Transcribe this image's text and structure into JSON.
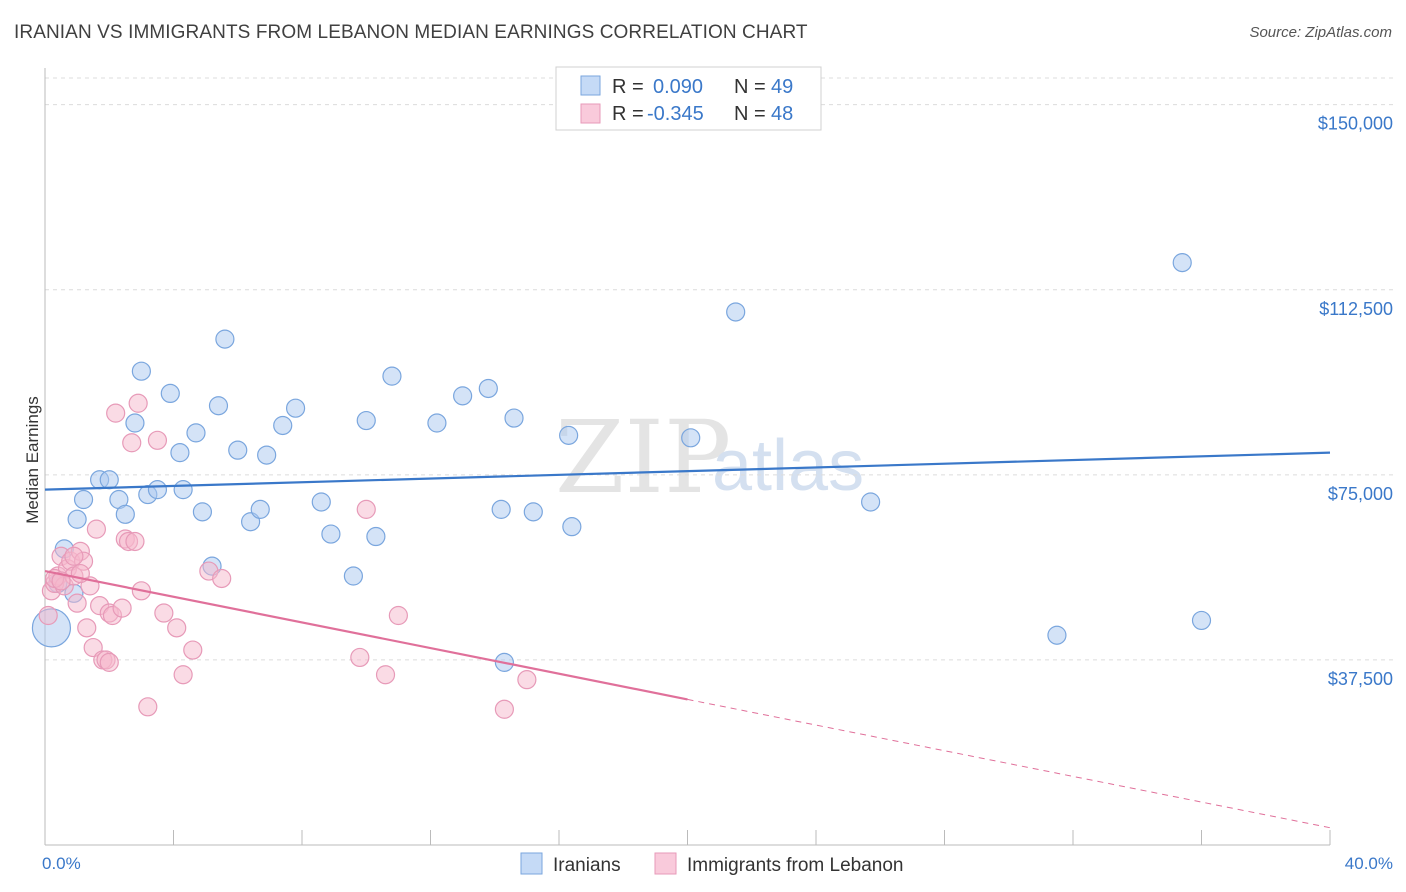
{
  "title": "IRANIAN VS IMMIGRANTS FROM LEBANON MEDIAN EARNINGS CORRELATION CHART",
  "source": "Source: ZipAtlas.com",
  "watermark": {
    "zip": "ZIP",
    "atlas": "atlas"
  },
  "colors": {
    "blue": "#3a78c9",
    "blue_fill": "#a9c8f0",
    "pink": "#e0709a",
    "pink_fill": "#f5b8cc",
    "grid": "#dcdcdc"
  },
  "legend": {
    "r_label": "R =",
    "n_label": "N =",
    "rows": [
      {
        "series": "Iranians",
        "r": "0.090",
        "n": "49"
      },
      {
        "series": "Immigrants from Lebanon",
        "r": "-0.345",
        "n": "48"
      }
    ]
  },
  "chart_data": {
    "type": "scatter",
    "title": "IRANIAN VS IMMIGRANTS FROM LEBANON MEDIAN EARNINGS CORRELATION CHART",
    "xlabel": "",
    "ylabel": "Median Earnings",
    "xlim": [
      0,
      40
    ],
    "ylim": [
      0,
      155000
    ],
    "x_tick_labels": {
      "left": "0.0%",
      "right": "40.0%"
    },
    "y_ticks": [
      {
        "value": 37500,
        "label": "$37,500"
      },
      {
        "value": 75000,
        "label": "$75,000"
      },
      {
        "value": 112500,
        "label": "$112,500"
      },
      {
        "value": 150000,
        "label": "$150,000"
      }
    ],
    "series": [
      {
        "name": "Iranians",
        "trend": {
          "x0": 0,
          "y0": 72000,
          "x1": 40,
          "y1": 79500,
          "dashed_from": null
        },
        "points": [
          [
            0.2,
            44000
          ],
          [
            0.4,
            53000
          ],
          [
            0.6,
            60000
          ],
          [
            0.9,
            51000
          ],
          [
            1.0,
            66000
          ],
          [
            1.2,
            70000
          ],
          [
            1.7,
            74000
          ],
          [
            2.0,
            74000
          ],
          [
            2.3,
            70000
          ],
          [
            2.5,
            67000
          ],
          [
            2.8,
            85500
          ],
          [
            3.0,
            96000
          ],
          [
            3.2,
            71000
          ],
          [
            3.5,
            72000
          ],
          [
            3.9,
            91500
          ],
          [
            4.2,
            79500
          ],
          [
            4.3,
            72000
          ],
          [
            4.7,
            83500
          ],
          [
            4.9,
            67500
          ],
          [
            5.2,
            56500
          ],
          [
            5.4,
            89000
          ],
          [
            5.6,
            102500
          ],
          [
            6.0,
            80000
          ],
          [
            6.4,
            65500
          ],
          [
            6.7,
            68000
          ],
          [
            6.9,
            79000
          ],
          [
            7.4,
            85000
          ],
          [
            7.8,
            88500
          ],
          [
            8.6,
            69500
          ],
          [
            8.9,
            63000
          ],
          [
            9.6,
            54500
          ],
          [
            10.0,
            86000
          ],
          [
            10.3,
            62500
          ],
          [
            10.8,
            95000
          ],
          [
            12.2,
            85500
          ],
          [
            13.0,
            91000
          ],
          [
            13.8,
            92500
          ],
          [
            14.2,
            68000
          ],
          [
            14.3,
            37000
          ],
          [
            14.6,
            86500
          ],
          [
            15.2,
            67500
          ],
          [
            16.3,
            83000
          ],
          [
            16.4,
            64500
          ],
          [
            20.1,
            82500
          ],
          [
            21.5,
            108000
          ],
          [
            25.7,
            69500
          ],
          [
            31.5,
            42500
          ],
          [
            35.4,
            118000
          ],
          [
            36.0,
            45500
          ]
        ]
      },
      {
        "name": "Immigrants from Lebanon",
        "trend": {
          "x0": 0,
          "y0": 55500,
          "x1": 40,
          "y1": 3500,
          "dashed_from": 20
        },
        "points": [
          [
            0.1,
            46500
          ],
          [
            0.2,
            51500
          ],
          [
            0.3,
            53000
          ],
          [
            0.4,
            54500
          ],
          [
            0.5,
            58500
          ],
          [
            0.6,
            52500
          ],
          [
            0.7,
            56000
          ],
          [
            0.8,
            57500
          ],
          [
            0.9,
            54500
          ],
          [
            1.0,
            49000
          ],
          [
            1.1,
            59500
          ],
          [
            1.2,
            57500
          ],
          [
            1.3,
            44000
          ],
          [
            1.4,
            52500
          ],
          [
            1.5,
            40000
          ],
          [
            1.6,
            64000
          ],
          [
            1.7,
            48500
          ],
          [
            1.8,
            37500
          ],
          [
            1.9,
            37500
          ],
          [
            2.0,
            47000
          ],
          [
            2.1,
            46500
          ],
          [
            2.2,
            87500
          ],
          [
            2.4,
            48000
          ],
          [
            2.5,
            62000
          ],
          [
            2.6,
            61500
          ],
          [
            2.7,
            81500
          ],
          [
            2.8,
            61500
          ],
          [
            2.9,
            89500
          ],
          [
            3.0,
            51500
          ],
          [
            3.2,
            28000
          ],
          [
            3.5,
            82000
          ],
          [
            3.7,
            47000
          ],
          [
            4.1,
            44000
          ],
          [
            4.3,
            34500
          ],
          [
            4.6,
            39500
          ],
          [
            5.1,
            55500
          ],
          [
            5.5,
            54000
          ],
          [
            9.8,
            38000
          ],
          [
            10.0,
            68000
          ],
          [
            10.6,
            34500
          ],
          [
            11.0,
            46500
          ],
          [
            14.3,
            27500
          ],
          [
            15.0,
            33500
          ],
          [
            0.3,
            54000
          ],
          [
            0.5,
            53500
          ],
          [
            0.9,
            58500
          ],
          [
            1.1,
            55000
          ],
          [
            2.0,
            37000
          ]
        ]
      }
    ]
  }
}
